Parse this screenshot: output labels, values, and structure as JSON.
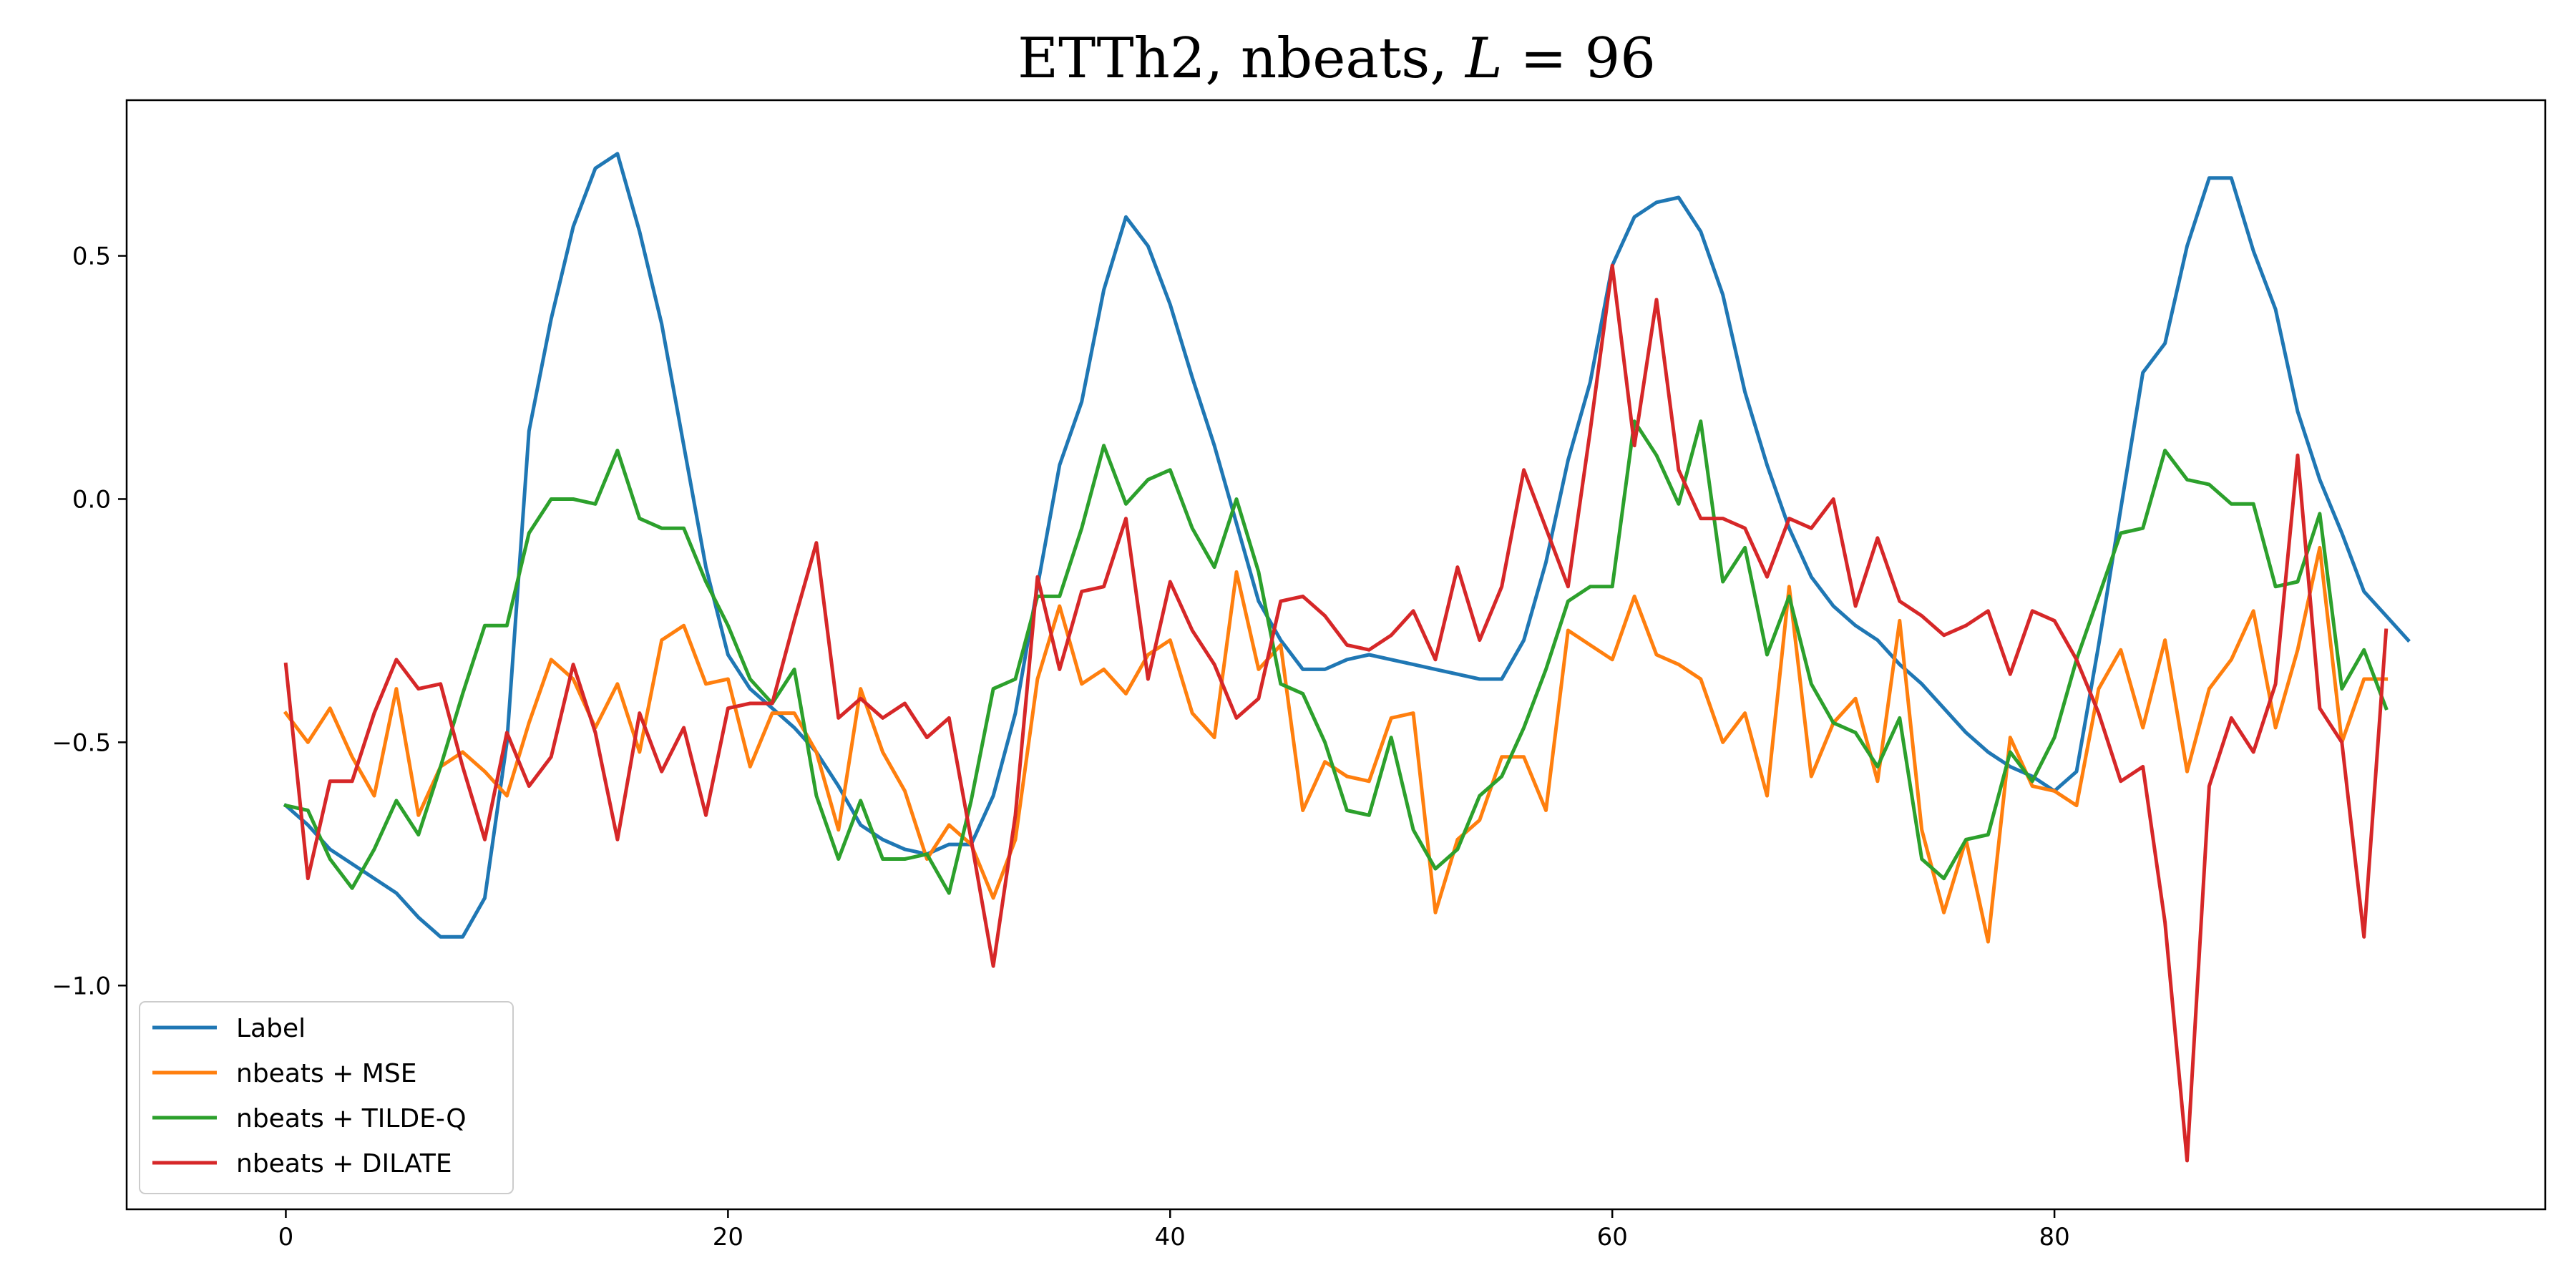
{
  "chart_data": {
    "type": "line",
    "title_prefix": "ETTh2, nbeats, ",
    "title_var": "L",
    "title_suffix": " = 96",
    "xlabel": "",
    "ylabel": "",
    "xlim": [
      -7.2,
      102.2
    ],
    "ylim": [
      -1.46,
      0.82
    ],
    "xticks": [
      0,
      20,
      40,
      60,
      80
    ],
    "yticks": [
      0.5,
      0.0,
      -0.5,
      -1.0
    ],
    "ytick_labels": [
      "0.5",
      "0.0",
      "−0.5",
      "−1.0"
    ],
    "grid": false,
    "legend_position": "lower-left",
    "series": [
      {
        "name": "Label",
        "color": "#1f77b4",
        "values": [
          -0.63,
          -0.67,
          -0.72,
          -0.75,
          -0.78,
          -0.81,
          -0.86,
          -0.9,
          -0.9,
          -0.82,
          -0.5,
          0.14,
          0.37,
          0.56,
          0.68,
          0.71,
          0.55,
          0.36,
          0.11,
          -0.14,
          -0.32,
          -0.39,
          -0.43,
          -0.47,
          -0.52,
          -0.59,
          -0.67,
          -0.7,
          -0.72,
          -0.73,
          -0.71,
          -0.71,
          -0.61,
          -0.44,
          -0.18,
          0.07,
          0.2,
          0.43,
          0.58,
          0.52,
          0.4,
          0.25,
          0.11,
          -0.05,
          -0.21,
          -0.29,
          -0.35,
          -0.35,
          -0.33,
          -0.32,
          -0.33,
          -0.34,
          -0.35,
          -0.36,
          -0.37,
          -0.37,
          -0.29,
          -0.13,
          0.08,
          0.24,
          0.48,
          0.58,
          0.61,
          0.62,
          0.55,
          0.42,
          0.22,
          0.07,
          -0.06,
          -0.16,
          -0.22,
          -0.26,
          -0.29,
          -0.34,
          -0.38,
          -0.43,
          -0.48,
          -0.52,
          -0.55,
          -0.57,
          -0.6,
          -0.56,
          -0.3,
          -0.02,
          0.26,
          0.32,
          0.52,
          0.66,
          0.66,
          0.51,
          0.39,
          0.18,
          0.04,
          -0.07,
          -0.19,
          -0.24,
          -0.29
        ],
        "dashed": false
      },
      {
        "name": "nbeats + MSE",
        "color": "#ff7f0e",
        "values": [
          -0.44,
          -0.5,
          -0.43,
          -0.53,
          -0.61,
          -0.39,
          -0.65,
          -0.55,
          -0.52,
          -0.56,
          -0.61,
          -0.46,
          -0.33,
          -0.37,
          -0.47,
          -0.38,
          -0.52,
          -0.29,
          -0.26,
          -0.38,
          -0.37,
          -0.55,
          -0.44,
          -0.44,
          -0.52,
          -0.68,
          -0.39,
          -0.52,
          -0.6,
          -0.74,
          -0.67,
          -0.71,
          -0.82,
          -0.7,
          -0.37,
          -0.22,
          -0.38,
          -0.35,
          -0.4,
          -0.32,
          -0.29,
          -0.44,
          -0.49,
          -0.15,
          -0.35,
          -0.3,
          -0.64,
          -0.54,
          -0.57,
          -0.58,
          -0.45,
          -0.44,
          -0.85,
          -0.7,
          -0.66,
          -0.53,
          -0.53,
          -0.64,
          -0.27,
          -0.3,
          -0.33,
          -0.2,
          -0.32,
          -0.34,
          -0.37,
          -0.5,
          -0.44,
          -0.61,
          -0.18,
          -0.57,
          -0.46,
          -0.41,
          -0.58,
          -0.25,
          -0.68,
          -0.85,
          -0.7,
          -0.91,
          -0.49,
          -0.59,
          -0.6,
          -0.63,
          -0.39,
          -0.31,
          -0.47,
          -0.29,
          -0.56,
          -0.39,
          -0.33,
          -0.23,
          -0.47,
          -0.31,
          -0.1,
          -0.5,
          -0.37,
          -0.37
        ],
        "dashed": false
      },
      {
        "name": "nbeats + TILDE-Q",
        "color": "#2ca02c",
        "values": [
          -0.63,
          -0.64,
          -0.74,
          -0.8,
          -0.72,
          -0.62,
          -0.69,
          -0.55,
          -0.4,
          -0.26,
          -0.26,
          -0.07,
          0.0,
          0.0,
          -0.01,
          0.1,
          -0.04,
          -0.06,
          -0.06,
          -0.17,
          -0.26,
          -0.37,
          -0.42,
          -0.35,
          -0.61,
          -0.74,
          -0.62,
          -0.74,
          -0.74,
          -0.73,
          -0.81,
          -0.62,
          -0.39,
          -0.37,
          -0.2,
          -0.2,
          -0.06,
          0.11,
          -0.01,
          0.04,
          0.06,
          -0.06,
          -0.14,
          0.0,
          -0.15,
          -0.38,
          -0.4,
          -0.5,
          -0.64,
          -0.65,
          -0.49,
          -0.68,
          -0.76,
          -0.72,
          -0.61,
          -0.57,
          -0.47,
          -0.35,
          -0.21,
          -0.18,
          -0.18,
          0.16,
          0.09,
          -0.01,
          0.16,
          -0.17,
          -0.1,
          -0.32,
          -0.2,
          -0.38,
          -0.46,
          -0.48,
          -0.55,
          -0.45,
          -0.74,
          -0.78,
          -0.7,
          -0.69,
          -0.52,
          -0.58,
          -0.49,
          -0.33,
          -0.2,
          -0.07,
          -0.06,
          0.1,
          0.04,
          0.03,
          -0.01,
          -0.01,
          -0.18,
          -0.17,
          -0.03,
          -0.39,
          -0.31,
          -0.43
        ],
        "dashed": false
      },
      {
        "name": "nbeats + DILATE",
        "color": "#d62728",
        "values": [
          -0.34,
          -0.78,
          -0.58,
          -0.58,
          -0.44,
          -0.33,
          -0.39,
          -0.38,
          -0.55,
          -0.7,
          -0.48,
          -0.59,
          -0.53,
          -0.34,
          -0.48,
          -0.7,
          -0.44,
          -0.56,
          -0.47,
          -0.65,
          -0.43,
          -0.42,
          -0.42,
          -0.25,
          -0.09,
          -0.45,
          -0.41,
          -0.45,
          -0.42,
          -0.49,
          -0.45,
          -0.7,
          -0.96,
          -0.65,
          -0.16,
          -0.35,
          -0.19,
          -0.18,
          -0.04,
          -0.37,
          -0.17,
          -0.27,
          -0.34,
          -0.45,
          -0.41,
          -0.21,
          -0.2,
          -0.24,
          -0.3,
          -0.31,
          -0.28,
          -0.23,
          -0.33,
          -0.14,
          -0.29,
          -0.18,
          0.06,
          -0.06,
          -0.18,
          0.14,
          0.48,
          0.11,
          0.41,
          0.06,
          -0.04,
          -0.04,
          -0.06,
          -0.16,
          -0.04,
          -0.06,
          0.0,
          -0.22,
          -0.08,
          -0.21,
          -0.24,
          -0.28,
          -0.26,
          -0.23,
          -0.36,
          -0.23,
          -0.25,
          -0.33,
          -0.44,
          -0.58,
          -0.55,
          -0.87,
          -1.36,
          -0.59,
          -0.45,
          -0.52,
          -0.38,
          0.09,
          -0.43,
          -0.5,
          -0.9,
          -0.27
        ],
        "dashed": false
      }
    ]
  }
}
